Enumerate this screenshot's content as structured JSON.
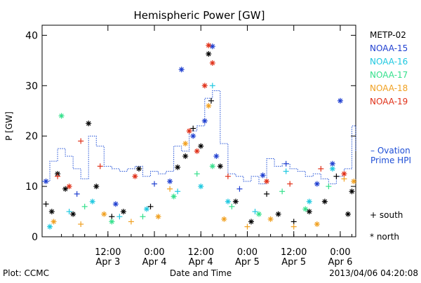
{
  "chart_data": {
    "type": "scatter",
    "title": "Hemispheric Power [GW]",
    "ylabel": "P [GW]",
    "xlabel": "Date and Time",
    "ylim": [
      0,
      42
    ],
    "xlim": [
      "2013-04-02 19:00",
      "2013-04-06 04:00"
    ],
    "grid": false,
    "legend_placement": "right",
    "yticks": [
      0,
      10,
      20,
      30,
      40
    ],
    "xticks": [
      {
        "time": "2013-04-03 12:00",
        "line1": "12:00",
        "line2": "Apr 3"
      },
      {
        "time": "2013-04-04 00:00",
        "line1": "0:00",
        "line2": "Apr 4"
      },
      {
        "time": "2013-04-04 12:00",
        "line1": "12:00",
        "line2": "Apr 4"
      },
      {
        "time": "2013-04-05 00:00",
        "line1": "0:00",
        "line2": "Apr 5"
      },
      {
        "time": "2013-04-05 12:00",
        "line1": "12:00",
        "line2": "Apr 5"
      },
      {
        "time": "2013-04-06 00:00",
        "line1": "0:00",
        "line2": "Apr 6"
      }
    ],
    "footer": {
      "left": "Plot: CCMC",
      "center": "Date and Time",
      "right": "2013/04/06 04:20:08"
    },
    "legend_symbols": {
      "south": "+ south",
      "north": "* north"
    },
    "ovation_label": [
      "– Ovation",
      "Prime HPI"
    ],
    "ovation_color": "#1f4fd6",
    "series": [
      {
        "name": "METP-02",
        "color": "#000000",
        "points": [
          [
            "2013-04-02 20:00",
            6.5,
            "+"
          ],
          [
            "2013-04-02 21:30",
            5.0,
            "*"
          ],
          [
            "2013-04-02 23:00",
            12.5,
            "*"
          ],
          [
            "2013-04-03 01:00",
            9.5,
            "*"
          ],
          [
            "2013-04-03 03:00",
            4.5,
            "*"
          ],
          [
            "2013-04-03 07:00",
            22.5,
            "*"
          ],
          [
            "2013-04-03 09:00",
            10.0,
            "*"
          ],
          [
            "2013-04-03 13:00",
            4.0,
            "+"
          ],
          [
            "2013-04-03 16:00",
            5.0,
            "*"
          ],
          [
            "2013-04-03 20:00",
            13.5,
            "*"
          ],
          [
            "2013-04-03 23:00",
            6.0,
            "+"
          ],
          [
            "2013-04-04 06:00",
            13.8,
            "*"
          ],
          [
            "2013-04-04 08:00",
            16.0,
            "*"
          ],
          [
            "2013-04-04 10:00",
            21.5,
            "+"
          ],
          [
            "2013-04-04 12:00",
            18.0,
            "*"
          ],
          [
            "2013-04-04 14:00",
            36.3,
            "*"
          ],
          [
            "2013-04-04 14:40",
            27.0,
            "+"
          ],
          [
            "2013-04-04 17:00",
            14.0,
            "*"
          ],
          [
            "2013-04-04 21:00",
            7.0,
            "*"
          ],
          [
            "2013-04-05 01:00",
            3.0,
            "*"
          ],
          [
            "2013-04-05 05:00",
            8.5,
            "+"
          ],
          [
            "2013-04-05 08:00",
            4.5,
            "*"
          ],
          [
            "2013-04-05 12:00",
            3.0,
            "+"
          ],
          [
            "2013-04-05 16:00",
            5.0,
            "*"
          ],
          [
            "2013-04-05 20:00",
            7.0,
            "*"
          ],
          [
            "2013-04-05 23:00",
            12.0,
            "+"
          ],
          [
            "2013-04-06 02:00",
            4.5,
            "*"
          ],
          [
            "2013-04-06 03:00",
            9.0,
            "*"
          ]
        ]
      },
      {
        "name": "NOAA-15",
        "color": "#1f3fd0",
        "points": [
          [
            "2013-04-02 20:00",
            11.0,
            "*"
          ],
          [
            "2013-04-03 04:00",
            8.5,
            "+"
          ],
          [
            "2013-04-03 14:00",
            6.5,
            "*"
          ],
          [
            "2013-04-04 00:00",
            10.5,
            "+"
          ],
          [
            "2013-04-04 04:00",
            11.0,
            "*"
          ],
          [
            "2013-04-04 07:00",
            33.2,
            "*"
          ],
          [
            "2013-04-04 10:00",
            20.0,
            "*"
          ],
          [
            "2013-04-04 13:00",
            23.0,
            "*"
          ],
          [
            "2013-04-04 15:00",
            37.8,
            "*"
          ],
          [
            "2013-04-04 16:00",
            16.0,
            "*"
          ],
          [
            "2013-04-04 22:00",
            9.5,
            "+"
          ],
          [
            "2013-04-05 04:00",
            12.2,
            "*"
          ],
          [
            "2013-04-05 10:00",
            14.5,
            "+"
          ],
          [
            "2013-04-05 18:00",
            10.5,
            "*"
          ],
          [
            "2013-04-05 22:00",
            14.5,
            "*"
          ],
          [
            "2013-04-06 00:00",
            27.0,
            "*"
          ]
        ]
      },
      {
        "name": "NOAA-16",
        "color": "#1ec8e0",
        "points": [
          [
            "2013-04-02 21:00",
            2.0,
            "*"
          ],
          [
            "2013-04-03 02:00",
            5.0,
            "+"
          ],
          [
            "2013-04-03 08:00",
            7.0,
            "*"
          ],
          [
            "2013-04-03 15:00",
            4.0,
            "+"
          ],
          [
            "2013-04-03 22:00",
            5.5,
            "*"
          ],
          [
            "2013-04-04 06:00",
            9.0,
            "+"
          ],
          [
            "2013-04-04 12:00",
            10.0,
            "*"
          ],
          [
            "2013-04-04 15:00",
            30.0,
            "+"
          ],
          [
            "2013-04-04 19:00",
            7.0,
            "*"
          ],
          [
            "2013-04-05 02:00",
            5.0,
            "+"
          ],
          [
            "2013-04-05 10:00",
            13.0,
            "+"
          ],
          [
            "2013-04-05 16:00",
            7.0,
            "*"
          ],
          [
            "2013-04-05 22:00",
            13.5,
            "*"
          ]
        ]
      },
      {
        "name": "NOAA-17",
        "color": "#35e08c",
        "points": [
          [
            "2013-04-03 00:00",
            24.0,
            "*"
          ],
          [
            "2013-04-03 06:00",
            6.0,
            "+"
          ],
          [
            "2013-04-03 13:00",
            3.0,
            "*"
          ],
          [
            "2013-04-03 21:00",
            4.0,
            "+"
          ],
          [
            "2013-04-04 05:00",
            8.0,
            "*"
          ],
          [
            "2013-04-04 11:00",
            12.5,
            "+"
          ],
          [
            "2013-04-04 15:00",
            14.0,
            "*"
          ],
          [
            "2013-04-04 20:00",
            6.0,
            "+"
          ],
          [
            "2013-04-05 03:00",
            4.5,
            "*"
          ],
          [
            "2013-04-05 09:00",
            9.0,
            "+"
          ],
          [
            "2013-04-05 15:00",
            5.5,
            "*"
          ],
          [
            "2013-04-05 21:00",
            10.0,
            "+"
          ]
        ]
      },
      {
        "name": "NOAA-18",
        "color": "#f0a020",
        "points": [
          [
            "2013-04-02 22:00",
            3.0,
            "*"
          ],
          [
            "2013-04-03 05:00",
            2.5,
            "+"
          ],
          [
            "2013-04-03 11:00",
            4.5,
            "*"
          ],
          [
            "2013-04-03 18:00",
            3.0,
            "+"
          ],
          [
            "2013-04-04 01:00",
            4.0,
            "*"
          ],
          [
            "2013-04-04 04:00",
            9.5,
            "+"
          ],
          [
            "2013-04-04 08:00",
            18.5,
            "*"
          ],
          [
            "2013-04-04 14:00",
            26.0,
            "*"
          ],
          [
            "2013-04-04 18:00",
            3.5,
            "*"
          ],
          [
            "2013-04-05 00:00",
            2.0,
            "+"
          ],
          [
            "2013-04-05 06:00",
            3.5,
            "*"
          ],
          [
            "2013-04-05 12:00",
            2.0,
            "+"
          ],
          [
            "2013-04-05 18:00",
            2.5,
            "*"
          ],
          [
            "2013-04-06 01:00",
            11.5,
            "+"
          ],
          [
            "2013-04-06 03:30",
            11.0,
            "*"
          ]
        ]
      },
      {
        "name": "NOAA-19",
        "color": "#e03018",
        "points": [
          [
            "2013-04-02 23:00",
            12.0,
            "+"
          ],
          [
            "2013-04-03 02:00",
            10.0,
            "*"
          ],
          [
            "2013-04-03 05:00",
            19.0,
            "+"
          ],
          [
            "2013-04-03 10:00",
            14.0,
            "+"
          ],
          [
            "2013-04-03 19:00",
            12.0,
            "*"
          ],
          [
            "2013-04-04 09:00",
            21.0,
            "*"
          ],
          [
            "2013-04-04 11:00",
            17.0,
            "*"
          ],
          [
            "2013-04-04 13:00",
            30.0,
            "*"
          ],
          [
            "2013-04-04 14:00",
            38.0,
            "*"
          ],
          [
            "2013-04-04 15:00",
            34.5,
            "*"
          ],
          [
            "2013-04-04 19:00",
            12.0,
            "+"
          ],
          [
            "2013-04-05 05:00",
            11.0,
            "*"
          ],
          [
            "2013-04-05 11:00",
            10.5,
            "+"
          ],
          [
            "2013-04-05 19:00",
            13.5,
            "+"
          ],
          [
            "2013-04-06 01:00",
            12.5,
            "*"
          ]
        ]
      }
    ],
    "ovation": {
      "name": "Ovation Prime HPI",
      "points": [
        [
          "2013-04-02 19:00",
          11
        ],
        [
          "2013-04-02 21:00",
          15
        ],
        [
          "2013-04-02 23:00",
          17.5
        ],
        [
          "2013-04-03 01:00",
          16
        ],
        [
          "2013-04-03 03:00",
          13.5
        ],
        [
          "2013-04-03 05:00",
          11.5
        ],
        [
          "2013-04-03 07:00",
          20
        ],
        [
          "2013-04-03 09:00",
          18
        ],
        [
          "2013-04-03 11:00",
          14
        ],
        [
          "2013-04-03 13:00",
          13.5
        ],
        [
          "2013-04-03 15:00",
          13
        ],
        [
          "2013-04-03 17:00",
          13.5
        ],
        [
          "2013-04-03 19:00",
          14
        ],
        [
          "2013-04-03 21:00",
          12
        ],
        [
          "2013-04-03 23:00",
          13
        ],
        [
          "2013-04-04 01:00",
          12.5
        ],
        [
          "2013-04-04 03:00",
          13
        ],
        [
          "2013-04-04 05:00",
          18
        ],
        [
          "2013-04-04 07:00",
          17
        ],
        [
          "2013-04-04 09:00",
          21
        ],
        [
          "2013-04-04 11:00",
          22
        ],
        [
          "2013-04-04 13:00",
          27.5
        ],
        [
          "2013-04-04 15:00",
          29
        ],
        [
          "2013-04-04 17:00",
          18.5
        ],
        [
          "2013-04-04 19:00",
          12.5
        ],
        [
          "2013-04-04 21:00",
          12
        ],
        [
          "2013-04-04 23:00",
          11
        ],
        [
          "2013-04-05 01:00",
          12
        ],
        [
          "2013-04-05 03:00",
          10.5
        ],
        [
          "2013-04-05 05:00",
          15.5
        ],
        [
          "2013-04-05 07:00",
          14
        ],
        [
          "2013-04-05 09:00",
          14.5
        ],
        [
          "2013-04-05 11:00",
          13.5
        ],
        [
          "2013-04-05 13:00",
          13
        ],
        [
          "2013-04-05 15:00",
          12
        ],
        [
          "2013-04-05 17:00",
          12.5
        ],
        [
          "2013-04-05 19:00",
          11.5
        ],
        [
          "2013-04-05 21:00",
          10.5
        ],
        [
          "2013-04-05 23:00",
          12
        ],
        [
          "2013-04-06 01:00",
          13.5
        ],
        [
          "2013-04-06 03:00",
          22
        ],
        [
          "2013-04-06 04:00",
          17
        ]
      ]
    }
  }
}
